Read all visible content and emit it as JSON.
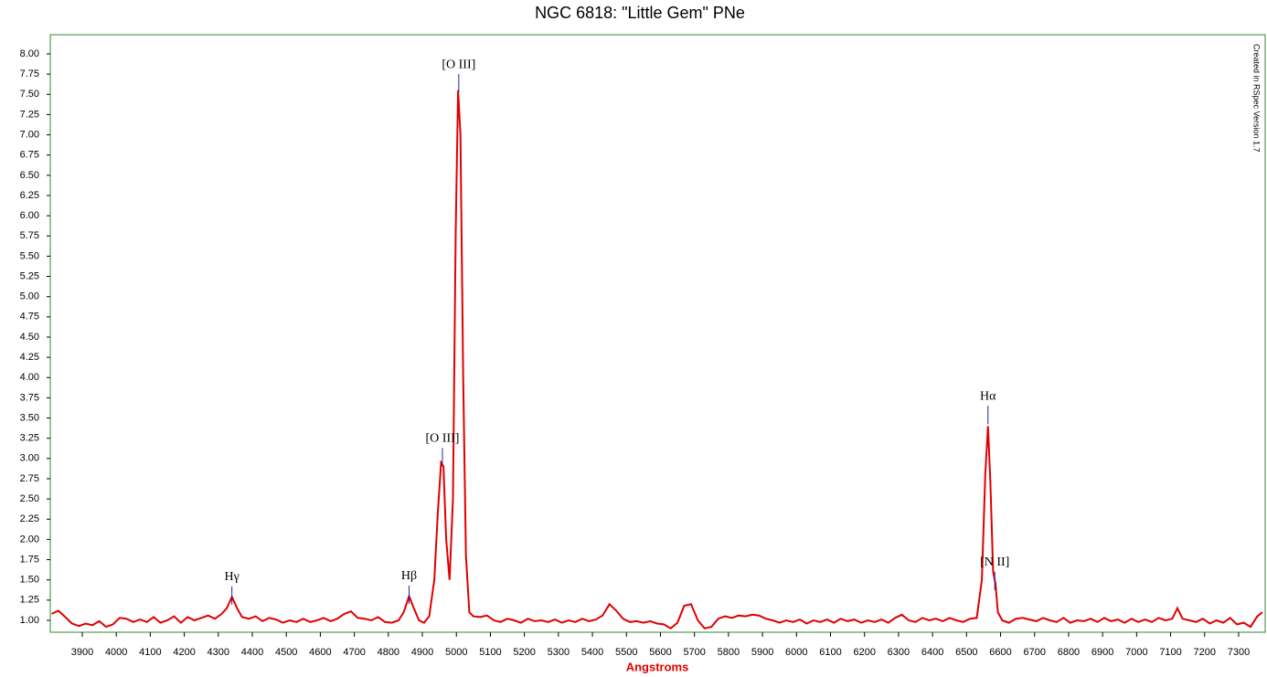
{
  "chart_data": {
    "type": "line",
    "title": "NGC 6818: \"Little Gem\" PNe",
    "x_label": "Angstroms",
    "credit": "Created in RSpec Version 1.7",
    "color": "#e00000",
    "annotation_color": "#2020a0",
    "x": [
      3810,
      3830,
      3850,
      3870,
      3890,
      3910,
      3930,
      3950,
      3970,
      3990,
      4010,
      4030,
      4050,
      4070,
      4090,
      4110,
      4130,
      4150,
      4170,
      4190,
      4210,
      4230,
      4250,
      4270,
      4290,
      4310,
      4325,
      4340,
      4355,
      4370,
      4390,
      4410,
      4430,
      4450,
      4470,
      4490,
      4510,
      4530,
      4550,
      4570,
      4590,
      4610,
      4630,
      4650,
      4670,
      4690,
      4710,
      4730,
      4750,
      4770,
      4790,
      4810,
      4830,
      4845,
      4861,
      4875,
      4890,
      4905,
      4920,
      4935,
      4945,
      4955,
      4962,
      4970,
      4980,
      4990,
      4998,
      5005,
      5012,
      5020,
      5028,
      5038,
      5050,
      5070,
      5090,
      5110,
      5130,
      5150,
      5170,
      5190,
      5210,
      5230,
      5250,
      5270,
      5290,
      5310,
      5330,
      5350,
      5370,
      5390,
      5410,
      5430,
      5450,
      5470,
      5490,
      5510,
      5530,
      5550,
      5570,
      5590,
      5610,
      5630,
      5650,
      5670,
      5690,
      5710,
      5730,
      5750,
      5770,
      5790,
      5810,
      5830,
      5850,
      5870,
      5890,
      5910,
      5930,
      5950,
      5970,
      5990,
      6010,
      6030,
      6050,
      6070,
      6090,
      6110,
      6130,
      6150,
      6170,
      6190,
      6210,
      6230,
      6250,
      6270,
      6290,
      6310,
      6330,
      6350,
      6370,
      6390,
      6410,
      6430,
      6450,
      6470,
      6490,
      6510,
      6530,
      6545,
      6555,
      6563,
      6570,
      6578,
      6585,
      6592,
      6605,
      6625,
      6645,
      6665,
      6685,
      6705,
      6725,
      6745,
      6765,
      6785,
      6805,
      6825,
      6845,
      6865,
      6885,
      6905,
      6925,
      6945,
      6965,
      6985,
      7005,
      7025,
      7045,
      7065,
      7085,
      7105,
      7120,
      7135,
      7155,
      7175,
      7195,
      7215,
      7235,
      7255,
      7275,
      7295,
      7315,
      7335,
      7355,
      7370
    ],
    "values": [
      1.08,
      1.12,
      1.04,
      0.96,
      0.93,
      0.96,
      0.94,
      0.99,
      0.92,
      0.95,
      1.03,
      1.02,
      0.98,
      1.01,
      0.98,
      1.04,
      0.97,
      1.0,
      1.05,
      0.97,
      1.04,
      1.0,
      1.03,
      1.06,
      1.02,
      1.08,
      1.15,
      1.29,
      1.15,
      1.04,
      1.02,
      1.05,
      0.99,
      1.03,
      1.01,
      0.97,
      1.0,
      0.98,
      1.02,
      0.98,
      1.0,
      1.03,
      0.99,
      1.02,
      1.08,
      1.11,
      1.03,
      1.02,
      1.0,
      1.04,
      0.98,
      0.97,
      1.0,
      1.1,
      1.3,
      1.15,
      1.0,
      0.97,
      1.05,
      1.5,
      2.3,
      2.95,
      2.9,
      2.0,
      1.5,
      2.5,
      5.8,
      7.55,
      7.0,
      4.0,
      1.8,
      1.1,
      1.05,
      1.04,
      1.06,
      1.0,
      0.98,
      1.02,
      1.0,
      0.97,
      1.02,
      0.99,
      1.0,
      0.98,
      1.01,
      0.97,
      1.0,
      0.98,
      1.02,
      0.99,
      1.01,
      1.06,
      1.2,
      1.12,
      1.02,
      0.98,
      0.99,
      0.97,
      0.99,
      0.96,
      0.95,
      0.9,
      0.97,
      1.18,
      1.2,
      1.0,
      0.9,
      0.92,
      1.02,
      1.05,
      1.03,
      1.06,
      1.05,
      1.07,
      1.06,
      1.02,
      1.0,
      0.97,
      1.0,
      0.98,
      1.01,
      0.96,
      1.0,
      0.98,
      1.01,
      0.97,
      1.02,
      0.99,
      1.01,
      0.97,
      1.0,
      0.98,
      1.01,
      0.97,
      1.03,
      1.07,
      1.0,
      0.98,
      1.03,
      1.0,
      1.02,
      0.99,
      1.03,
      1.0,
      0.98,
      1.02,
      1.03,
      1.5,
      2.8,
      3.4,
      2.7,
      1.6,
      1.45,
      1.1,
      1.0,
      0.97,
      1.02,
      1.03,
      1.01,
      0.99,
      1.03,
      1.0,
      0.98,
      1.03,
      0.97,
      1.0,
      0.99,
      1.02,
      0.98,
      1.03,
      0.99,
      1.01,
      0.97,
      1.02,
      0.98,
      1.01,
      0.98,
      1.03,
      1.0,
      1.02,
      1.15,
      1.02,
      1.0,
      0.98,
      1.02,
      0.96,
      1.0,
      0.97,
      1.03,
      0.95,
      0.97,
      0.92,
      1.05,
      1.1
    ],
    "annotations": [
      {
        "text": "Hγ",
        "x": 4340,
        "y": 1.42
      },
      {
        "text": "Hβ",
        "x": 4861,
        "y": 1.43
      },
      {
        "text": "[O III]",
        "x": 4959,
        "y": 3.13
      },
      {
        "text": "[O III]",
        "x": 5007,
        "y": 7.75
      },
      {
        "text": "Hα",
        "x": 6563,
        "y": 3.65
      },
      {
        "text": "[N II]",
        "x": 6583,
        "y": 1.6
      }
    ],
    "xlim": [
      3806,
      7378
    ],
    "xticks": [
      3900,
      4000,
      4100,
      4200,
      4300,
      4400,
      4500,
      4600,
      4700,
      4800,
      4900,
      5000,
      5100,
      5200,
      5300,
      5400,
      5500,
      5600,
      5700,
      5800,
      5900,
      6000,
      6100,
      6200,
      6300,
      6400,
      6500,
      6600,
      6700,
      6800,
      6900,
      7000,
      7100,
      7200,
      7300
    ],
    "ylim": [
      0.853,
      8.237
    ],
    "yticks": [
      {
        "value": 1,
        "label": "1.00"
      },
      {
        "value": 1.25,
        "label": "1.25"
      },
      {
        "value": 1.5,
        "label": "1.50"
      },
      {
        "value": 1.75,
        "label": "1.75"
      },
      {
        "value": 2,
        "label": "2.00"
      },
      {
        "value": 2.25,
        "label": "2.25"
      },
      {
        "value": 2.5,
        "label": "2.50"
      },
      {
        "value": 2.75,
        "label": "2.75"
      },
      {
        "value": 3,
        "label": "3.00"
      },
      {
        "value": 3.25,
        "label": "3.25"
      },
      {
        "value": 3.5,
        "label": "3.50"
      },
      {
        "value": 3.75,
        "label": "3.75"
      },
      {
        "value": 4,
        "label": "4.00"
      },
      {
        "value": 4.25,
        "label": "4.25"
      },
      {
        "value": 4.5,
        "label": "4.50"
      },
      {
        "value": 4.75,
        "label": "4.75"
      },
      {
        "value": 5,
        "label": "5.00"
      },
      {
        "value": 5.25,
        "label": "5.25"
      },
      {
        "value": 5.5,
        "label": "5.50"
      },
      {
        "value": 5.75,
        "label": "5.75"
      },
      {
        "value": 6,
        "label": "6.00"
      },
      {
        "value": 6.25,
        "label": "6.25"
      },
      {
        "value": 6.5,
        "label": "6.50"
      },
      {
        "value": 6.75,
        "label": "6.75"
      },
      {
        "value": 7,
        "label": "7.00"
      },
      {
        "value": 7.25,
        "label": "7.25"
      },
      {
        "value": 7.5,
        "label": "7.50"
      },
      {
        "value": 7.75,
        "label": "7.75"
      },
      {
        "value": 8,
        "label": "8.00"
      }
    ],
    "grid": false
  }
}
